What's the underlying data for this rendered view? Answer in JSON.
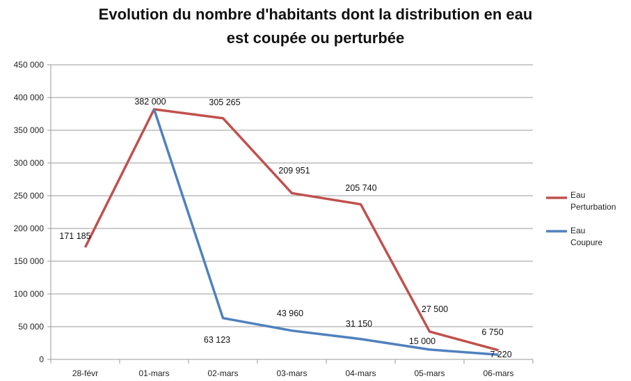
{
  "chart_data": {
    "type": "line",
    "title_line1": "Evolution du nombre d'habitants dont la distribution en eau",
    "title_line2": "est coupée ou perturbée",
    "categories": [
      "28-févr",
      "01-mars",
      "02-mars",
      "03-mars",
      "04-mars",
      "05-mars",
      "06-mars"
    ],
    "ylim": [
      0,
      450000
    ],
    "yticks": [
      0,
      50000,
      100000,
      150000,
      200000,
      250000,
      300000,
      350000,
      400000,
      450000
    ],
    "ytick_labels": [
      "0",
      "50 000",
      "100 000",
      "150 000",
      "200 000",
      "250 000",
      "300 000",
      "350 000",
      "400 000",
      "450 000"
    ],
    "grid": true,
    "legend_position": "right",
    "series": [
      {
        "name": "Eau Perturbation",
        "legend_line1": "Eau",
        "legend_line2": "Perturbation",
        "color": "#c0504d",
        "values": [
          171185,
          382000,
          368388,
          253911,
          236890,
          42500,
          13970
        ],
        "data_labels": [
          "171 185",
          "382 000",
          "305 265",
          "209 951",
          "205 740",
          "27 500",
          "6 750"
        ]
      },
      {
        "name": "Eau Coupure",
        "legend_line1": "Eau",
        "legend_line2": "Coupure",
        "color": "#4f81bd",
        "values": [
          null,
          382000,
          63123,
          43960,
          31150,
          15000,
          7220
        ],
        "data_labels": [
          "",
          "",
          "63 123",
          "43 960",
          "31 150",
          "15 000",
          "7 220"
        ]
      }
    ]
  }
}
